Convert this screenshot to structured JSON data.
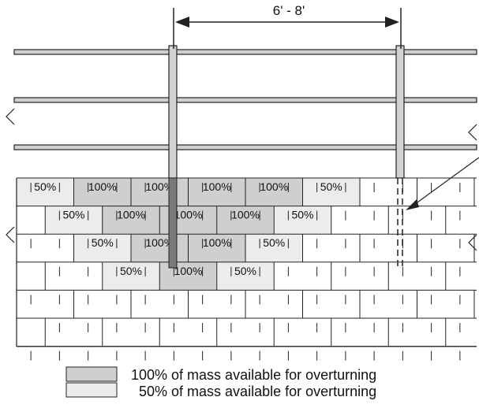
{
  "dimension": {
    "label": "6' - 8'"
  },
  "blocks": [
    {
      "row": 0,
      "text": "50%",
      "fill": "light"
    },
    {
      "row": 0,
      "text": "100%",
      "fill": "dark"
    },
    {
      "row": 0,
      "text": "100%",
      "fill": "dark"
    },
    {
      "row": 0,
      "text": "100%",
      "fill": "dark"
    },
    {
      "row": 0,
      "text": "100%",
      "fill": "dark"
    },
    {
      "row": 0,
      "text": "50%",
      "fill": "light"
    },
    {
      "row": 1,
      "text": "50%",
      "fill": "light"
    },
    {
      "row": 1,
      "text": "100%",
      "fill": "dark"
    },
    {
      "row": 1,
      "text": "100%",
      "fill": "dark"
    },
    {
      "row": 1,
      "text": "100%",
      "fill": "dark"
    },
    {
      "row": 1,
      "text": "50%",
      "fill": "light"
    },
    {
      "row": 2,
      "text": "50%",
      "fill": "light"
    },
    {
      "row": 2,
      "text": "100%",
      "fill": "dark"
    },
    {
      "row": 2,
      "text": "100%",
      "fill": "dark"
    },
    {
      "row": 2,
      "text": "50%",
      "fill": "light"
    },
    {
      "row": 3,
      "text": "50%",
      "fill": "light"
    },
    {
      "row": 3,
      "text": "100%",
      "fill": "dark"
    },
    {
      "row": 3,
      "text": "50%",
      "fill": "light"
    }
  ],
  "legend": [
    {
      "fill": "dark",
      "label": "100% of mass available for overturning"
    },
    {
      "fill": "light",
      "label": "50% of mass available for overturning"
    }
  ],
  "colors": {
    "dark": "#cfcfcf",
    "light": "#ececec",
    "post": "#d3d3d3",
    "post_embedded": "#7a7a7a",
    "rail": "#d0d0d0",
    "line": "#222222"
  }
}
